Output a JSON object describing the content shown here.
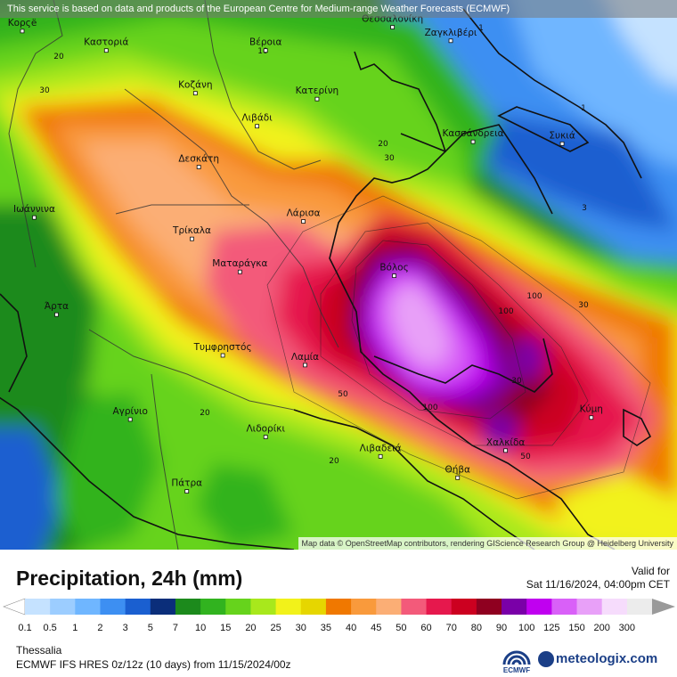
{
  "banner": "This service is based on data and products of the European Centre for Medium-range Weather Forecasts (ECMWF)",
  "attribution": "Map data © OpenStreetMap contributors, rendering GIScience Research Group @ Heidelberg University",
  "title": "Precipitation, 24h (mm)",
  "valid_label": "Valid for",
  "valid_time": "Sat 11/16/2024, 04:00pm CET",
  "region": "Thessalia",
  "model_info": "ECMWF IFS HRES 0z/12z (10 days) from  11/15/2024/00z",
  "ecmwf_logo_text": "ECMWF",
  "brand": "meteologix.com",
  "cities": [
    {
      "name": "Κορςë",
      "lon": 20.78,
      "lat": 40.62
    },
    {
      "name": "Καστοριά",
      "lon": 21.27,
      "lat": 40.52
    },
    {
      "name": "Βέροια",
      "lon": 22.2,
      "lat": 40.52
    },
    {
      "name": "Θεσσαλονίκη",
      "lon": 22.94,
      "lat": 40.64
    },
    {
      "name": "Ζαγκλιβέρι",
      "lon": 23.28,
      "lat": 40.57
    },
    {
      "name": "Κοζάνη",
      "lon": 21.79,
      "lat": 40.3
    },
    {
      "name": "Κατερίνη",
      "lon": 22.5,
      "lat": 40.27
    },
    {
      "name": "Λιβάδι",
      "lon": 22.15,
      "lat": 40.13
    },
    {
      "name": "Κασσάνδρεια",
      "lon": 23.41,
      "lat": 40.05
    },
    {
      "name": "Συκιά",
      "lon": 23.93,
      "lat": 40.04
    },
    {
      "name": "Δεσκάτη",
      "lon": 21.81,
      "lat": 39.92
    },
    {
      "name": "Ιωάννινα",
      "lon": 20.85,
      "lat": 39.66
    },
    {
      "name": "Λάρισα",
      "lon": 22.42,
      "lat": 39.64
    },
    {
      "name": "Τρίκαλα",
      "lon": 21.77,
      "lat": 39.55
    },
    {
      "name": "Βόλος",
      "lon": 22.95,
      "lat": 39.36
    },
    {
      "name": "Ματαράγκα",
      "lon": 22.05,
      "lat": 39.38
    },
    {
      "name": "Άρτα",
      "lon": 20.98,
      "lat": 39.16
    },
    {
      "name": "Τυμφρηστός",
      "lon": 21.95,
      "lat": 38.95
    },
    {
      "name": "Λαμία",
      "lon": 22.43,
      "lat": 38.9
    },
    {
      "name": "Κύμη",
      "lon": 24.1,
      "lat": 38.63
    },
    {
      "name": "Αγρίνιο",
      "lon": 21.41,
      "lat": 38.62
    },
    {
      "name": "Λιδορίκι",
      "lon": 22.2,
      "lat": 38.53
    },
    {
      "name": "Χαλκίδα",
      "lon": 23.6,
      "lat": 38.46
    },
    {
      "name": "Λιβαδειά",
      "lon": 22.87,
      "lat": 38.43
    },
    {
      "name": "Θήβα",
      "lon": 23.32,
      "lat": 38.32
    },
    {
      "name": "Πάτρα",
      "lon": 21.74,
      "lat": 38.25
    }
  ],
  "contour_labels": [
    "1",
    "1",
    "3",
    "10",
    "20",
    "20",
    "20",
    "30",
    "30",
    "30",
    "30",
    "50",
    "50",
    "100",
    "100",
    "100",
    "20"
  ],
  "legend": {
    "values": [
      "0.1",
      "0.5",
      "1",
      "2",
      "3",
      "5",
      "7",
      "10",
      "15",
      "20",
      "25",
      "30",
      "35",
      "40",
      "45",
      "50",
      "60",
      "70",
      "80",
      "90",
      "100",
      "125",
      "150",
      "200",
      "300"
    ],
    "colors": [
      "#c5e2ff",
      "#9ccdff",
      "#6fb6ff",
      "#3d8ff2",
      "#1a5fd0",
      "#0b2e7a",
      "#1c8a1c",
      "#31b31f",
      "#66d31c",
      "#a8e81c",
      "#f2f21a",
      "#e6d600",
      "#f07800",
      "#f99a3c",
      "#fbae75",
      "#f35a7a",
      "#e6184d",
      "#cc0020",
      "#8f0020",
      "#7a00a8",
      "#c000f0",
      "#d960f8",
      "#e8a0f8",
      "#f6dcfc",
      "#ececec"
    ]
  }
}
